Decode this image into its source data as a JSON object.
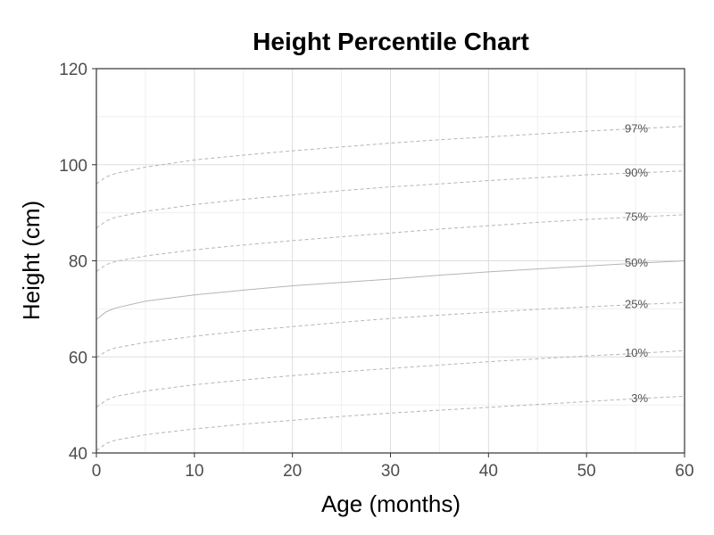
{
  "chart_data": {
    "type": "line",
    "title": "Height Percentile Chart",
    "xlabel": "Age (months)",
    "ylabel": "Height (cm)",
    "xlim": [
      0,
      60
    ],
    "ylim": [
      40,
      120
    ],
    "x_ticks": [
      0,
      10,
      20,
      30,
      40,
      50,
      60
    ],
    "y_ticks": [
      40,
      60,
      80,
      100,
      120
    ],
    "grid": true,
    "x": [
      0,
      1,
      2,
      5,
      10,
      15,
      20,
      25,
      30,
      35,
      40,
      45,
      50,
      55,
      60
    ],
    "series": [
      {
        "name": "3%",
        "line_style": "dashed",
        "values": [
          40.5,
          42.0,
          42.7,
          43.8,
          45.0,
          46.0,
          46.8,
          47.6,
          48.3,
          48.9,
          49.5,
          50.1,
          50.7,
          51.3,
          51.8
        ]
      },
      {
        "name": "10%",
        "line_style": "dashed",
        "values": [
          49.5,
          51.0,
          51.8,
          52.9,
          54.2,
          55.2,
          56.1,
          56.9,
          57.6,
          58.3,
          59.0,
          59.6,
          60.2,
          60.7,
          61.3
        ]
      },
      {
        "name": "25%",
        "line_style": "dashed",
        "values": [
          59.8,
          61.2,
          61.9,
          63.0,
          64.3,
          65.4,
          66.3,
          67.2,
          68.0,
          68.7,
          69.3,
          69.9,
          70.4,
          70.9,
          71.3
        ]
      },
      {
        "name": "50%",
        "line_style": "solid",
        "values": [
          67.8,
          69.4,
          70.2,
          71.6,
          72.9,
          73.9,
          74.8,
          75.5,
          76.2,
          77.0,
          77.7,
          78.3,
          78.9,
          79.5,
          80.0
        ]
      },
      {
        "name": "75%",
        "line_style": "dashed",
        "values": [
          77.8,
          79.2,
          79.9,
          81.0,
          82.3,
          83.3,
          84.2,
          85.0,
          85.8,
          86.6,
          87.3,
          88.0,
          88.6,
          89.1,
          89.6
        ]
      },
      {
        "name": "90%",
        "line_style": "dashed",
        "values": [
          86.8,
          88.3,
          89.1,
          90.3,
          91.7,
          92.8,
          93.7,
          94.6,
          95.4,
          96.0,
          96.7,
          97.3,
          97.9,
          98.3,
          98.7
        ]
      },
      {
        "name": "97%",
        "line_style": "dashed",
        "values": [
          96.0,
          97.5,
          98.2,
          99.5,
          101.0,
          102.0,
          102.9,
          103.7,
          104.5,
          105.2,
          105.8,
          106.4,
          107.0,
          107.5,
          108.0
        ]
      }
    ],
    "label_x": 57,
    "colors": {
      "line": "#b5b5b5",
      "grid_major": "#dddddd",
      "grid_minor": "#efefef",
      "border": "#333333",
      "label": "#555555"
    }
  }
}
